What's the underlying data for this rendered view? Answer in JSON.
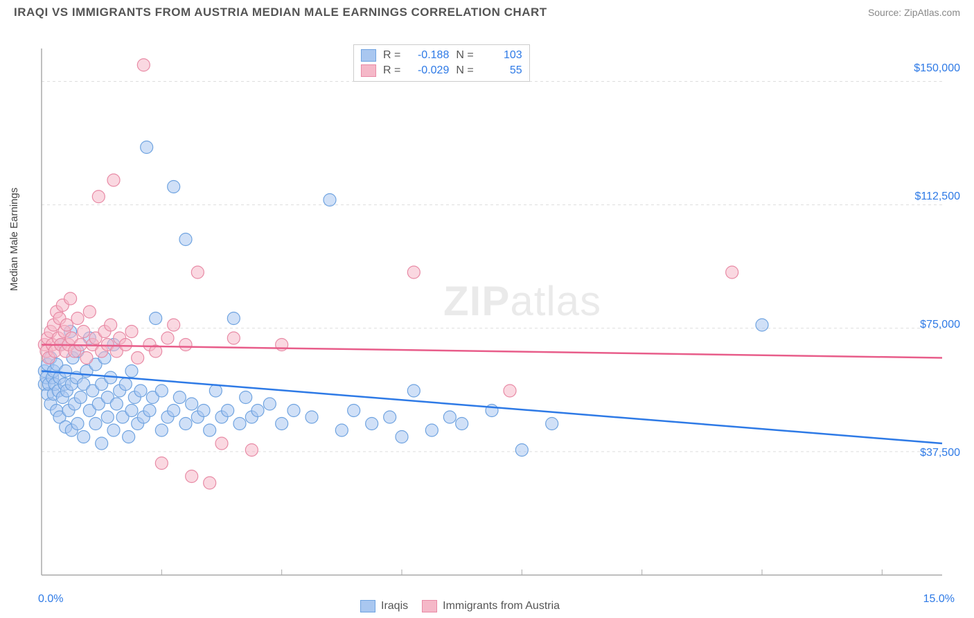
{
  "header": {
    "title": "IRAQI VS IMMIGRANTS FROM AUSTRIA MEDIAN MALE EARNINGS CORRELATION CHART",
    "source": "Source: ZipAtlas.com"
  },
  "watermark": {
    "zip": "ZIP",
    "atlas": "atlas"
  },
  "chart": {
    "type": "scatter",
    "ylabel": "Median Male Earnings",
    "xlim": [
      0,
      15
    ],
    "ylim": [
      0,
      160000
    ],
    "xtick_labels": {
      "0": "0.0%",
      "15": "15.0%"
    },
    "ytick_labels": {
      "37500": "$37,500",
      "75000": "$75,000",
      "112500": "$112,500",
      "150000": "$150,000"
    },
    "grid_color": "#dddddd",
    "axis_color": "#aaaaaa",
    "background_color": "#ffffff",
    "tick_font_color": "#2e7ae6",
    "label_font_color": "#444444",
    "label_fontsize": 15,
    "tick_fontsize": 16,
    "marker_radius": 9,
    "marker_opacity": 0.55,
    "line_width": 2.5,
    "series": [
      {
        "name": "Iraqis",
        "color_fill": "#a9c7f0",
        "color_stroke": "#6fa3e0",
        "line_color": "#2e7ae6",
        "R": "-0.188",
        "N": "103",
        "trend": {
          "y_at_x0": 62000,
          "y_at_x15": 40000
        },
        "points": [
          [
            0.05,
            58000
          ],
          [
            0.05,
            62000
          ],
          [
            0.08,
            60000
          ],
          [
            0.1,
            55000
          ],
          [
            0.1,
            64000
          ],
          [
            0.12,
            58000
          ],
          [
            0.15,
            52000
          ],
          [
            0.15,
            66000
          ],
          [
            0.18,
            60000
          ],
          [
            0.2,
            55000
          ],
          [
            0.2,
            62000
          ],
          [
            0.22,
            58000
          ],
          [
            0.25,
            50000
          ],
          [
            0.25,
            64000
          ],
          [
            0.28,
            56000
          ],
          [
            0.3,
            60000
          ],
          [
            0.3,
            48000
          ],
          [
            0.32,
            70000
          ],
          [
            0.35,
            54000
          ],
          [
            0.38,
            58000
          ],
          [
            0.4,
            45000
          ],
          [
            0.4,
            62000
          ],
          [
            0.42,
            56000
          ],
          [
            0.45,
            50000
          ],
          [
            0.48,
            74000
          ],
          [
            0.5,
            58000
          ],
          [
            0.5,
            44000
          ],
          [
            0.52,
            66000
          ],
          [
            0.55,
            52000
          ],
          [
            0.58,
            60000
          ],
          [
            0.6,
            46000
          ],
          [
            0.6,
            68000
          ],
          [
            0.65,
            54000
          ],
          [
            0.7,
            58000
          ],
          [
            0.7,
            42000
          ],
          [
            0.75,
            62000
          ],
          [
            0.8,
            50000
          ],
          [
            0.8,
            72000
          ],
          [
            0.85,
            56000
          ],
          [
            0.9,
            46000
          ],
          [
            0.9,
            64000
          ],
          [
            0.95,
            52000
          ],
          [
            1.0,
            58000
          ],
          [
            1.0,
            40000
          ],
          [
            1.05,
            66000
          ],
          [
            1.1,
            54000
          ],
          [
            1.1,
            48000
          ],
          [
            1.15,
            60000
          ],
          [
            1.2,
            44000
          ],
          [
            1.2,
            70000
          ],
          [
            1.25,
            52000
          ],
          [
            1.3,
            56000
          ],
          [
            1.35,
            48000
          ],
          [
            1.4,
            58000
          ],
          [
            1.45,
            42000
          ],
          [
            1.5,
            62000
          ],
          [
            1.5,
            50000
          ],
          [
            1.55,
            54000
          ],
          [
            1.6,
            46000
          ],
          [
            1.65,
            56000
          ],
          [
            1.7,
            48000
          ],
          [
            1.75,
            130000
          ],
          [
            1.8,
            50000
          ],
          [
            1.85,
            54000
          ],
          [
            1.9,
            78000
          ],
          [
            2.0,
            44000
          ],
          [
            2.0,
            56000
          ],
          [
            2.1,
            48000
          ],
          [
            2.2,
            50000
          ],
          [
            2.2,
            118000
          ],
          [
            2.3,
            54000
          ],
          [
            2.4,
            46000
          ],
          [
            2.4,
            102000
          ],
          [
            2.5,
            52000
          ],
          [
            2.6,
            48000
          ],
          [
            2.7,
            50000
          ],
          [
            2.8,
            44000
          ],
          [
            2.9,
            56000
          ],
          [
            3.0,
            48000
          ],
          [
            3.1,
            50000
          ],
          [
            3.2,
            78000
          ],
          [
            3.3,
            46000
          ],
          [
            3.4,
            54000
          ],
          [
            3.5,
            48000
          ],
          [
            3.6,
            50000
          ],
          [
            3.8,
            52000
          ],
          [
            4.0,
            46000
          ],
          [
            4.2,
            50000
          ],
          [
            4.5,
            48000
          ],
          [
            4.8,
            114000
          ],
          [
            5.0,
            44000
          ],
          [
            5.2,
            50000
          ],
          [
            5.5,
            46000
          ],
          [
            5.8,
            48000
          ],
          [
            6.0,
            42000
          ],
          [
            6.2,
            56000
          ],
          [
            6.5,
            44000
          ],
          [
            6.8,
            48000
          ],
          [
            7.0,
            46000
          ],
          [
            7.5,
            50000
          ],
          [
            8.0,
            38000
          ],
          [
            8.5,
            46000
          ],
          [
            12.0,
            76000
          ]
        ]
      },
      {
        "name": "Immigrants from Austria",
        "color_fill": "#f5b8c8",
        "color_stroke": "#e88aa5",
        "line_color": "#e85d8a",
        "R": "-0.029",
        "N": "55",
        "trend": {
          "y_at_x0": 70000,
          "y_at_x15": 66000
        },
        "points": [
          [
            0.05,
            70000
          ],
          [
            0.08,
            68000
          ],
          [
            0.1,
            72000
          ],
          [
            0.12,
            66000
          ],
          [
            0.15,
            74000
          ],
          [
            0.18,
            70000
          ],
          [
            0.2,
            76000
          ],
          [
            0.22,
            68000
          ],
          [
            0.25,
            80000
          ],
          [
            0.28,
            72000
          ],
          [
            0.3,
            78000
          ],
          [
            0.32,
            70000
          ],
          [
            0.35,
            82000
          ],
          [
            0.38,
            74000
          ],
          [
            0.4,
            68000
          ],
          [
            0.42,
            76000
          ],
          [
            0.45,
            70000
          ],
          [
            0.48,
            84000
          ],
          [
            0.5,
            72000
          ],
          [
            0.55,
            68000
          ],
          [
            0.6,
            78000
          ],
          [
            0.65,
            70000
          ],
          [
            0.7,
            74000
          ],
          [
            0.75,
            66000
          ],
          [
            0.8,
            80000
          ],
          [
            0.85,
            70000
          ],
          [
            0.9,
            72000
          ],
          [
            0.95,
            115000
          ],
          [
            1.0,
            68000
          ],
          [
            1.05,
            74000
          ],
          [
            1.1,
            70000
          ],
          [
            1.15,
            76000
          ],
          [
            1.2,
            120000
          ],
          [
            1.25,
            68000
          ],
          [
            1.3,
            72000
          ],
          [
            1.4,
            70000
          ],
          [
            1.5,
            74000
          ],
          [
            1.6,
            66000
          ],
          [
            1.7,
            155000
          ],
          [
            1.8,
            70000
          ],
          [
            1.9,
            68000
          ],
          [
            2.0,
            34000
          ],
          [
            2.1,
            72000
          ],
          [
            2.2,
            76000
          ],
          [
            2.4,
            70000
          ],
          [
            2.5,
            30000
          ],
          [
            2.6,
            92000
          ],
          [
            2.8,
            28000
          ],
          [
            3.0,
            40000
          ],
          [
            3.2,
            72000
          ],
          [
            3.5,
            38000
          ],
          [
            4.0,
            70000
          ],
          [
            6.2,
            92000
          ],
          [
            7.8,
            56000
          ],
          [
            11.5,
            92000
          ]
        ]
      }
    ],
    "legend_bottom": [
      {
        "label": "Iraqis",
        "fill": "#a9c7f0",
        "stroke": "#6fa3e0"
      },
      {
        "label": "Immigrants from Austria",
        "fill": "#f5b8c8",
        "stroke": "#e88aa5"
      }
    ]
  }
}
